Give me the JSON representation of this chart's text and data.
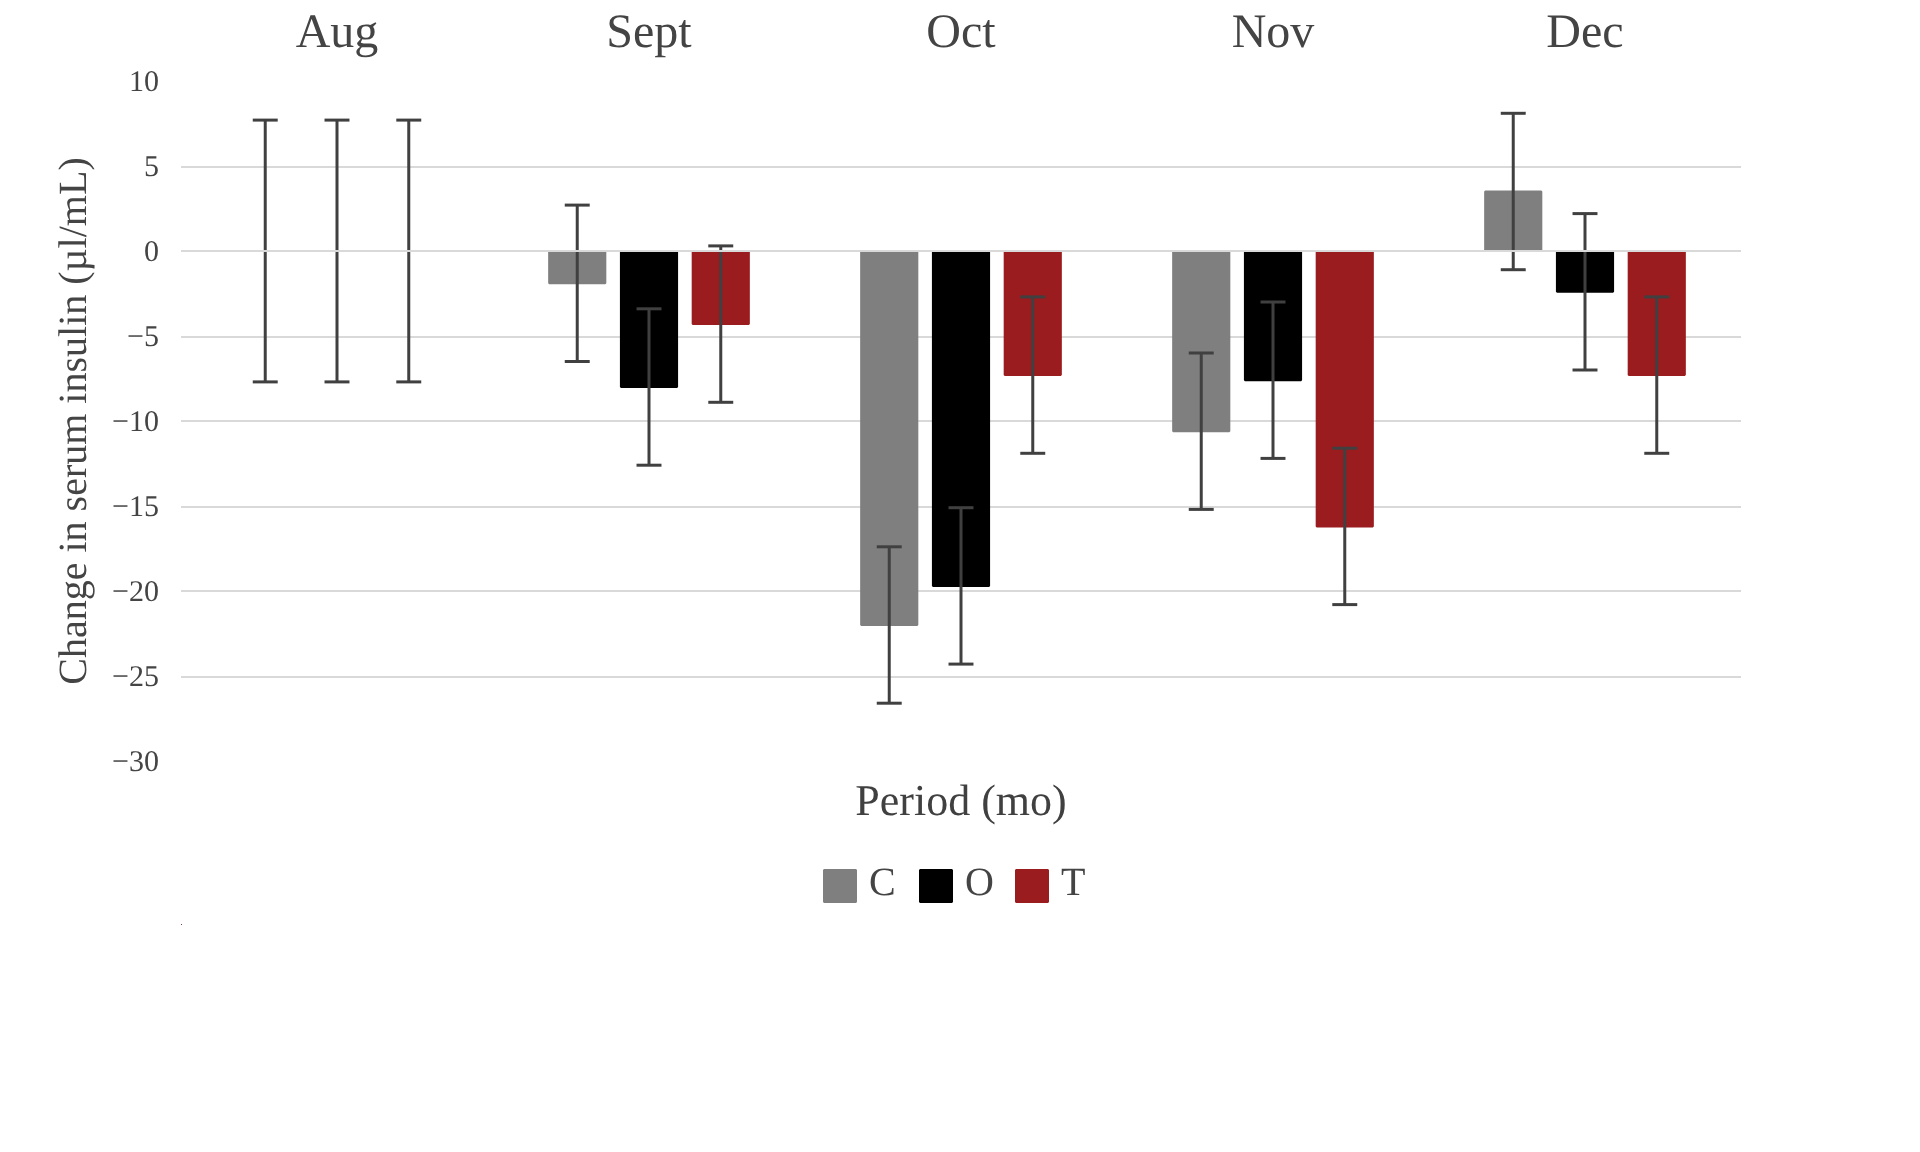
{
  "chart_data": {
    "type": "bar",
    "xlabel": "Period (mo)",
    "ylabel": "Change in serum insulin (µl/mL)",
    "categories": [
      "Aug",
      "Sept",
      "Oct",
      "Nov",
      "Dec"
    ],
    "series": [
      {
        "name": "C",
        "color": "#7f7f7f",
        "values": [
          0,
          -1.9,
          -22.0,
          -10.6,
          3.5
        ],
        "errors": [
          7.7,
          4.6,
          4.6,
          4.6,
          4.6
        ]
      },
      {
        "name": "O",
        "color": "#000000",
        "values": [
          0,
          -8.0,
          -19.7,
          -7.6,
          -2.4
        ],
        "errors": [
          7.7,
          4.6,
          4.6,
          4.6,
          4.6
        ]
      },
      {
        "name": "T",
        "color": "#9b1c1f",
        "values": [
          0,
          -4.3,
          -7.3,
          -16.2,
          -7.3
        ],
        "errors": [
          7.7,
          4.6,
          4.6,
          4.6,
          4.6
        ]
      }
    ],
    "ylim": [
      -30,
      10
    ],
    "yticks": [
      -30,
      -25,
      -20,
      -15,
      -10,
      -5,
      0,
      5,
      10
    ],
    "grid": "y",
    "legend": "bottom"
  }
}
